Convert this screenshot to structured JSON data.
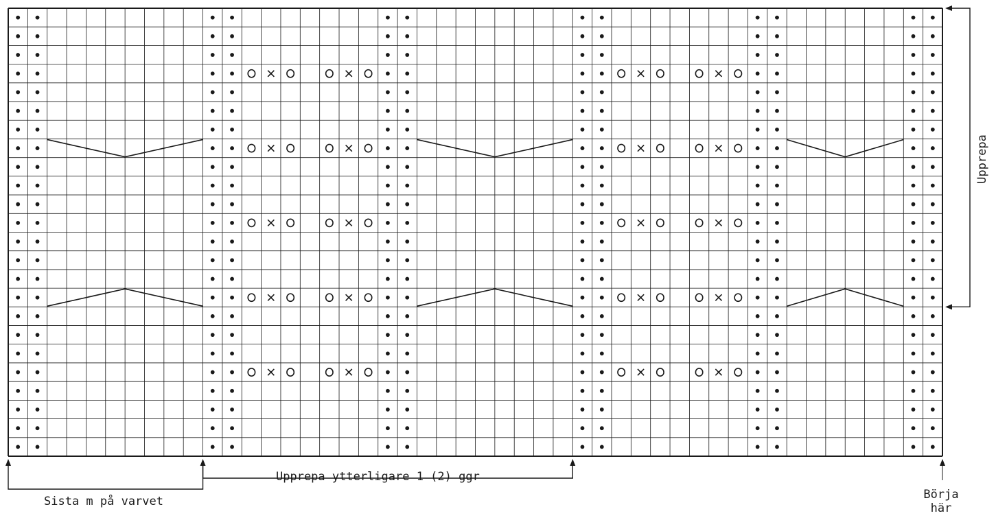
{
  "chart": {
    "columns": 48,
    "rows": 24,
    "purl_columns": [
      1,
      2,
      11,
      12,
      20,
      21,
      30,
      31,
      39,
      40,
      47,
      48
    ],
    "yo_rows": [
      4,
      8,
      12,
      16,
      20
    ],
    "yo_groups": [
      {
        "from_col": 13,
        "symbols": [
          "o",
          "x",
          "o"
        ]
      },
      {
        "from_col": 17,
        "symbols": [
          "o",
          "x",
          "o"
        ]
      },
      {
        "from_col": 32,
        "symbols": [
          "o",
          "x",
          "o"
        ]
      },
      {
        "from_col": 36,
        "symbols": [
          "o",
          "x",
          "o"
        ]
      }
    ],
    "cable_rows": [
      8,
      16
    ],
    "cable_panels": [
      {
        "from_col": 3,
        "to_col": 10
      },
      {
        "from_col": 22,
        "to_col": 29
      },
      {
        "from_col": 41,
        "to_col": 46
      }
    ],
    "colors": {
      "grid": "#1a1a1a",
      "symbol": "#1a1a1a",
      "background": "#ffffff"
    }
  },
  "symbols": {
    "purl": "•",
    "yarn_over": "o",
    "decrease": "x"
  },
  "labels": {
    "repeat_vertical": "Upprepa",
    "repeat_more": "Upprepa ytterligare 1 (2) ggr",
    "last_stitch": "Sista m på varvet",
    "start_line1": "Börja",
    "start_line2": "här"
  }
}
